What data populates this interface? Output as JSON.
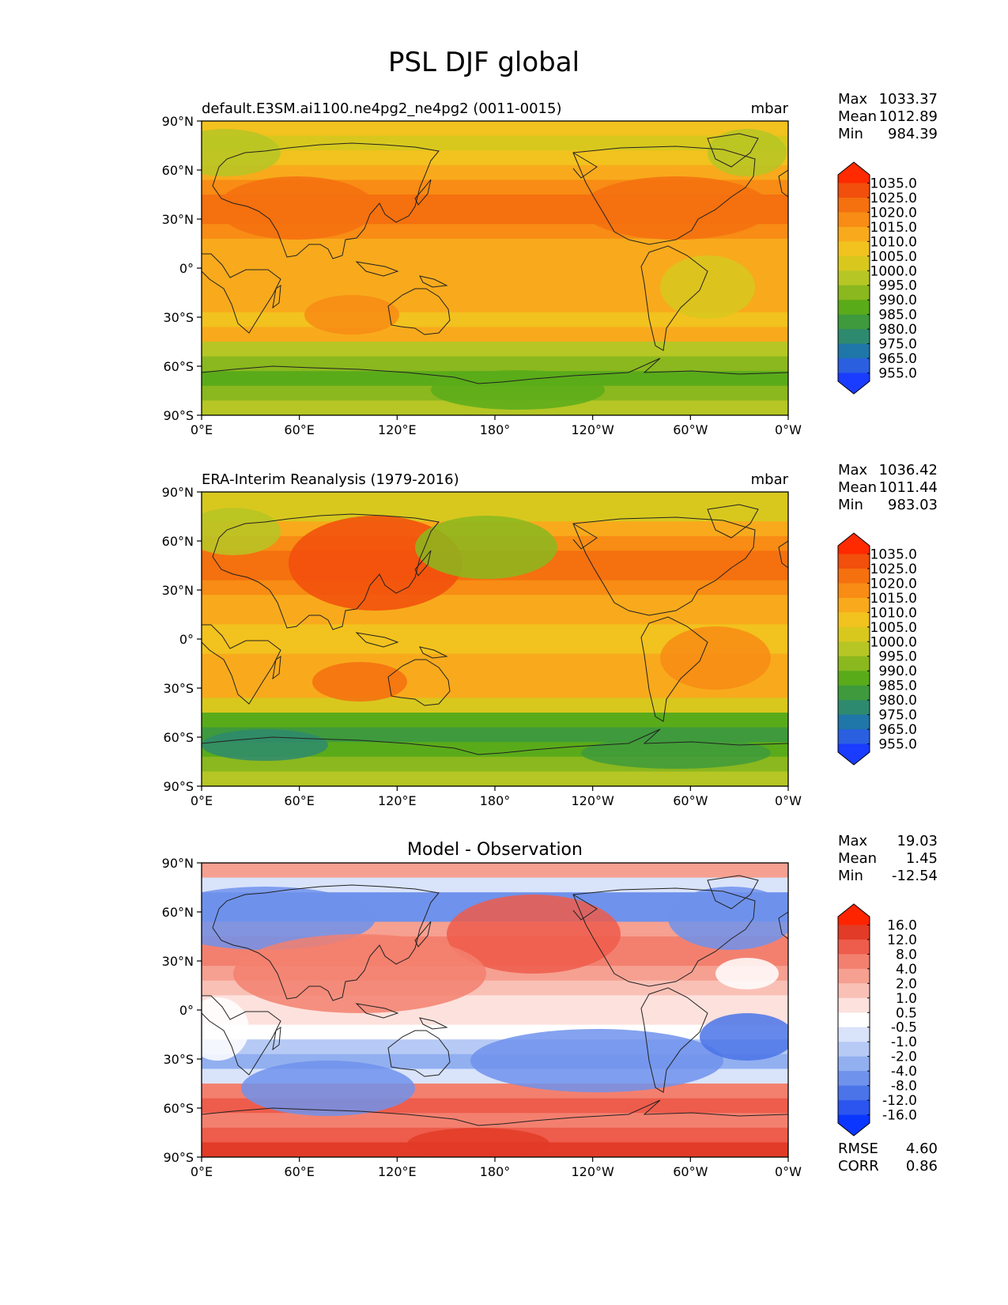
{
  "figure_title": "PSL DJF global",
  "axes": {
    "lat_ticks": [
      "90°N",
      "60°N",
      "30°N",
      "0°",
      "30°S",
      "60°S",
      "90°S"
    ],
    "lon_ticks": [
      "0°E",
      "60°E",
      "120°E",
      "180°",
      "120°W",
      "60°W",
      "0°W"
    ]
  },
  "colormaps": {
    "psl": [
      "#1a3cff",
      "#2a5fe0",
      "#1f76a8",
      "#2e8a6e",
      "#3e9a3c",
      "#5aab1a",
      "#8ab81e",
      "#b6c624",
      "#d8c81e",
      "#f2c21e",
      "#f8aa1c",
      "#f88c14",
      "#f5700f",
      "#f24e0c",
      "#ff2a00"
    ],
    "diff": [
      "#0b36ff",
      "#2b55ee",
      "#4a74e8",
      "#6f92ec",
      "#92aff0",
      "#b6caf5",
      "#d9e3fa",
      "#ffffff",
      "#fde1dd",
      "#f9c0b6",
      "#f6a091",
      "#f3806f",
      "#ee5c4b",
      "#e23b27",
      "#ff2400"
    ]
  },
  "panels": [
    {
      "id": "test",
      "title_left": "default.E3SM.ai1100.ne4pg2_ne4pg2 (0011-0015)",
      "title_center": "",
      "units": "mbar",
      "stats": [
        {
          "label": "Max",
          "value": "1033.37"
        },
        {
          "label": "Mean",
          "value": "1012.89"
        },
        {
          "label": "Min",
          "value": "984.39"
        }
      ],
      "colorbar_labels": [
        "1035.0",
        "1025.0",
        "1020.0",
        "1015.0",
        "1010.0",
        "1005.0",
        "1000.0",
        "995.0",
        "990.0",
        "985.0",
        "980.0",
        "975.0",
        "965.0",
        "955.0"
      ],
      "extra_stats": []
    },
    {
      "id": "reference",
      "title_left": "ERA-Interim Reanalysis (1979-2016)",
      "title_center": "",
      "units": "mbar",
      "stats": [
        {
          "label": "Max",
          "value": "1036.42"
        },
        {
          "label": "Mean",
          "value": "1011.44"
        },
        {
          "label": "Min",
          "value": "983.03"
        }
      ],
      "colorbar_labels": [
        "1035.0",
        "1025.0",
        "1020.0",
        "1015.0",
        "1010.0",
        "1005.0",
        "1000.0",
        "995.0",
        "990.0",
        "985.0",
        "980.0",
        "975.0",
        "965.0",
        "955.0"
      ],
      "extra_stats": []
    },
    {
      "id": "difference",
      "title_left": "",
      "title_center": "Model - Observation",
      "units": "",
      "stats": [
        {
          "label": "Max",
          "value": "19.03"
        },
        {
          "label": "Mean",
          "value": "1.45"
        },
        {
          "label": "Min",
          "value": "-12.54"
        }
      ],
      "colorbar_labels": [
        "16.0",
        "12.0",
        "8.0",
        "4.0",
        "2.0",
        "1.0",
        "0.5",
        "-0.5",
        "-1.0",
        "-2.0",
        "-4.0",
        "-8.0",
        "-12.0",
        "-16.0"
      ],
      "extra_stats": [
        {
          "label": "RMSE",
          "value": "4.60"
        },
        {
          "label": "CORR",
          "value": "0.86"
        }
      ]
    }
  ]
}
